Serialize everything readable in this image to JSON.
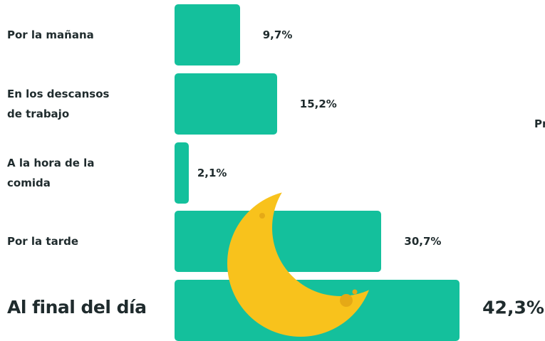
{
  "chart_data": {
    "type": "bar",
    "orientation": "horizontal",
    "categories": [
      "Por la mañana",
      "En los descansos de trabajo",
      "A la hora de la comida",
      "Por la tarde",
      "Al final del día"
    ],
    "values": [
      9.7,
      15.2,
      2.1,
      30.7,
      42.3
    ],
    "value_labels": [
      "9,7%",
      "15,2%",
      "2,1%",
      "30,7%",
      "42,3%"
    ],
    "color": "#14c09c",
    "annotation": "Pr"
  }
}
